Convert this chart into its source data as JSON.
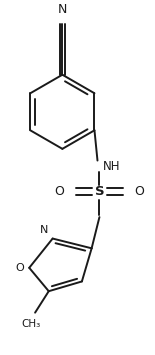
{
  "background_color": "#ffffff",
  "line_color": "#1a1a1a",
  "line_width": 1.4,
  "figsize": [
    1.55,
    3.55
  ],
  "dpi": 100,
  "xlim": [
    0,
    155
  ],
  "ylim": [
    0,
    355
  ]
}
